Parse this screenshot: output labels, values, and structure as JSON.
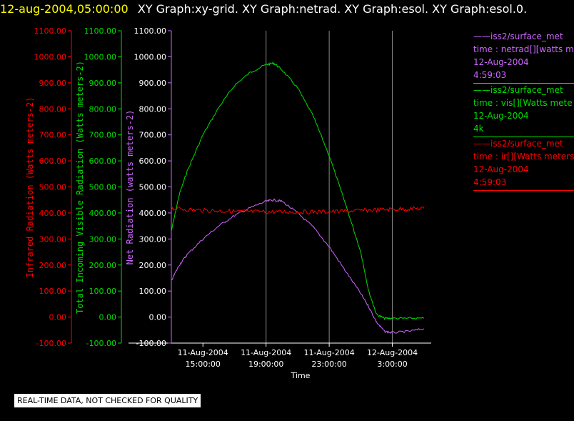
{
  "header": {
    "date": "12-aug-2004,05:00:00",
    "titles": "XY Graph:xy-grid.  XY Graph:netrad.  XY Graph:esol.  XY Graph:esol.0."
  },
  "notice": "REAL-TIME DATA, NOT CHECKED FOR QUALITY",
  "legend": [
    {
      "lines": [
        "iss2/surface_met",
        "time : netrad[][watts m",
        "12-Aug-2004",
        "4:59:03"
      ],
      "color": "#cc66ff"
    },
    {
      "lines": [
        "iss2/surface_met",
        "time : vis[][Watts mete",
        "12-Aug-2004",
        "4k"
      ],
      "color": "#00dd00"
    },
    {
      "lines": [
        "iss2/surface_met",
        "time : ir[][Watts meters",
        "12-Aug-2004",
        "4:59:03"
      ],
      "color": "#ff0000"
    }
  ],
  "chart_data": {
    "type": "line",
    "xlabel": "Time",
    "x_range_hours": [
      13.0,
      29.1
    ],
    "x_ticks": [
      {
        "x": 15,
        "label": [
          "11-Aug-2004",
          "15:00:00"
        ]
      },
      {
        "x": 19,
        "label": [
          "11-Aug-2004",
          "19:00:00"
        ]
      },
      {
        "x": 23,
        "label": [
          "11-Aug-2004",
          "23:00:00"
        ]
      },
      {
        "x": 27,
        "label": [
          "12-Aug-2004",
          "3:00:00"
        ]
      }
    ],
    "grid_x": [
      19,
      23,
      27
    ],
    "y_axes": [
      {
        "id": "ir",
        "label": "Infrared Radiation (Watts meters-2)",
        "color": "#ff0000",
        "ylim": [
          -100,
          1100
        ],
        "ticks": [
          "-100.00",
          "0.00",
          "100.00",
          "200.00",
          "300.00",
          "400.00",
          "500.00",
          "600.00",
          "700.00",
          "800.00",
          "900.00",
          "1000.00",
          "1100.00"
        ]
      },
      {
        "id": "vis",
        "label": "Total Incoming Visible Radiation (Watts meters-2)",
        "color": "#00dd00",
        "ylim": [
          -100,
          1100
        ],
        "ticks": [
          "-100.00",
          "0.00",
          "100.00",
          "200.00",
          "300.00",
          "400.00",
          "500.00",
          "600.00",
          "700.00",
          "800.00",
          "900.00",
          "1000.00",
          "1100.00"
        ]
      },
      {
        "id": "net",
        "label": "Net Radiation (watts meters-2)",
        "color": "#cc66ff",
        "ylim": [
          -100,
          1100
        ],
        "ticks": [
          "-100.00",
          "0.00",
          "100.00",
          "200.00",
          "300.00",
          "400.00",
          "500.00",
          "600.00",
          "700.00",
          "800.00",
          "900.00",
          "1000.00",
          "1100.00"
        ],
        "tick_color": "#ffffff"
      }
    ],
    "series": [
      {
        "name": "vis",
        "color": "#00dd00",
        "x": [
          13.0,
          13.5,
          14.0,
          15.0,
          16.0,
          17.0,
          18.0,
          19.0,
          19.5,
          20.0,
          21.0,
          22.0,
          23.0,
          24.0,
          25.0,
          25.5,
          26.0,
          26.5,
          27.0,
          28.0,
          29.0
        ],
        "values": [
          330,
          470,
          560,
          700,
          805,
          890,
          940,
          970,
          975,
          950,
          880,
          770,
          620,
          440,
          250,
          100,
          10,
          -5,
          -5,
          -5,
          -5
        ]
      },
      {
        "name": "net",
        "color": "#cc66ff",
        "x": [
          13.0,
          13.5,
          14.0,
          15.0,
          16.0,
          17.0,
          18.0,
          19.0,
          19.5,
          20.0,
          21.0,
          22.0,
          23.0,
          24.0,
          25.0,
          25.5,
          26.0,
          26.5,
          27.0,
          28.0,
          29.0
        ],
        "values": [
          140,
          200,
          240,
          300,
          350,
          390,
          420,
          445,
          450,
          445,
          400,
          345,
          270,
          180,
          90,
          40,
          -20,
          -55,
          -60,
          -55,
          -45
        ]
      },
      {
        "name": "ir",
        "color": "#ff0000",
        "x": [
          13.0,
          14.0,
          15.0,
          16.0,
          17.0,
          18.0,
          19.0,
          20.0,
          21.0,
          22.0,
          23.0,
          24.0,
          25.0,
          26.0,
          27.0,
          28.0,
          29.0
        ],
        "values": [
          418,
          413,
          410,
          408,
          406,
          405,
          404,
          404,
          404,
          404,
          405,
          407,
          409,
          412,
          414,
          416,
          418
        ]
      }
    ]
  }
}
